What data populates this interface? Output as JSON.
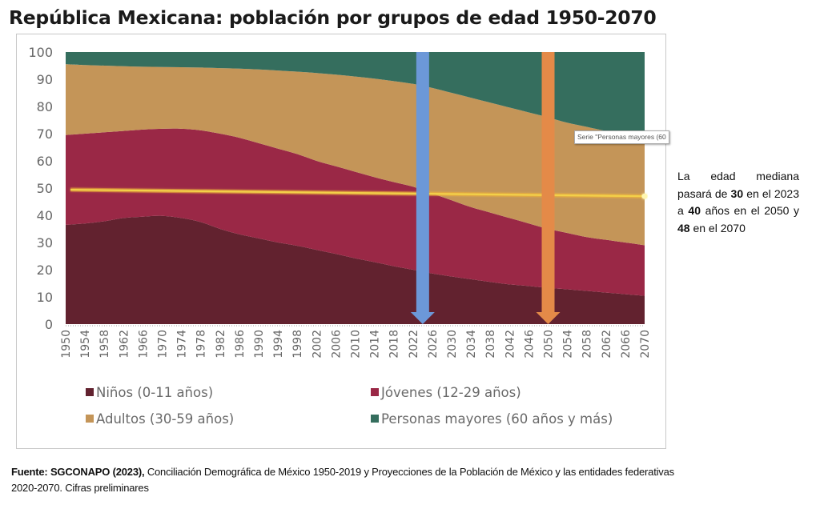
{
  "title": "República Mexicana: población por grupos de edad 1950-2070",
  "tooltip": "Serie \"Personas mayores (60",
  "note": {
    "line1": "La edad mediana",
    "p1": "pasará de ",
    "b1": "30",
    "p2": " en el 2023 a ",
    "b2": "40",
    "p3": " años en el 2050 y ",
    "b3": "48",
    "p4": " en el 2070"
  },
  "source": {
    "bold": "Fuente: SGCONAPO (2023),",
    "text": " Conciliación Demográfica de México 1950-2019 y Proyecciones de la Población de México y las entidades federativas 2020-2070. Cifras preliminares"
  },
  "chart_data": {
    "type": "area",
    "stacked": true,
    "title": "República Mexicana: población por grupos de edad 1950-2070",
    "xlabel": "",
    "ylabel": "",
    "ylim": [
      0,
      100
    ],
    "yticks": [
      0,
      10,
      20,
      30,
      40,
      50,
      60,
      70,
      80,
      90,
      100
    ],
    "xlim": [
      1950,
      2070
    ],
    "grid": false,
    "legend_position": "bottom",
    "x": [
      1950,
      1954,
      1958,
      1962,
      1966,
      1970,
      1974,
      1978,
      1982,
      1986,
      1990,
      1994,
      1998,
      2002,
      2006,
      2010,
      2014,
      2018,
      2022,
      2026,
      2030,
      2034,
      2038,
      2042,
      2046,
      2050,
      2054,
      2058,
      2062,
      2066,
      2070
    ],
    "series": [
      {
        "name": "Niños (0-11 años)",
        "color": "#62222f",
        "values": [
          36.5,
          37.0,
          37.8,
          39.0,
          39.5,
          39.8,
          39.0,
          37.5,
          35.0,
          33.0,
          31.5,
          30.0,
          28.8,
          27.3,
          25.8,
          24.2,
          22.8,
          21.3,
          20.0,
          18.6,
          17.5,
          16.5,
          15.5,
          14.6,
          14.0,
          13.3,
          12.8,
          12.2,
          11.6,
          11.0,
          10.4
        ]
      },
      {
        "name": "Jóvenes (12-29 años)",
        "color": "#9a2846",
        "values": [
          33.0,
          33.0,
          32.7,
          32.0,
          32.0,
          32.0,
          32.8,
          33.7,
          35.0,
          35.5,
          35.0,
          34.5,
          33.7,
          32.7,
          32.2,
          31.8,
          31.2,
          30.9,
          30.5,
          29.4,
          28.0,
          26.5,
          25.5,
          24.4,
          23.0,
          21.7,
          20.7,
          19.8,
          19.4,
          19.0,
          18.6
        ]
      },
      {
        "name": "Adultos (30-59 años)",
        "color": "#c49558",
        "values": [
          26.0,
          25.2,
          24.5,
          23.8,
          23.1,
          22.7,
          22.6,
          23.1,
          24.1,
          25.4,
          27.1,
          28.7,
          30.3,
          32.3,
          33.7,
          35.0,
          36.2,
          37.1,
          37.8,
          38.8,
          39.5,
          40.2,
          40.4,
          40.6,
          40.8,
          41.0,
          40.5,
          40.5,
          40.0,
          40.0,
          40.0
        ]
      },
      {
        "name": "Personas mayores (60 años y más)",
        "color": "#356e5e",
        "values": [
          4.5,
          4.8,
          5.0,
          5.2,
          5.4,
          5.5,
          5.6,
          5.7,
          5.9,
          6.1,
          6.4,
          6.8,
          7.2,
          7.7,
          8.3,
          9.0,
          9.8,
          10.7,
          11.7,
          13.2,
          15.0,
          16.8,
          18.6,
          20.4,
          22.2,
          24.0,
          26.0,
          27.5,
          29.0,
          30.0,
          31.0
        ]
      }
    ],
    "xticks": [
      1950,
      1954,
      1958,
      1962,
      1966,
      1970,
      1974,
      1978,
      1982,
      1986,
      1990,
      1994,
      1998,
      2002,
      2006,
      2010,
      2014,
      2018,
      2022,
      2026,
      2030,
      2034,
      2038,
      2042,
      2046,
      2050,
      2054,
      2058,
      2062,
      2066,
      2070
    ],
    "median_line": {
      "name": "Edad mediana",
      "x": [
        1951,
        2070
      ],
      "y": [
        49.4,
        47.0
      ],
      "color": "#f3d04a"
    },
    "annotations": [
      {
        "type": "arrow",
        "x": 2024,
        "color": "#6c98d8",
        "direction": "down"
      },
      {
        "type": "arrow",
        "x": 2050,
        "color": "#e48a48",
        "direction": "down"
      }
    ]
  }
}
